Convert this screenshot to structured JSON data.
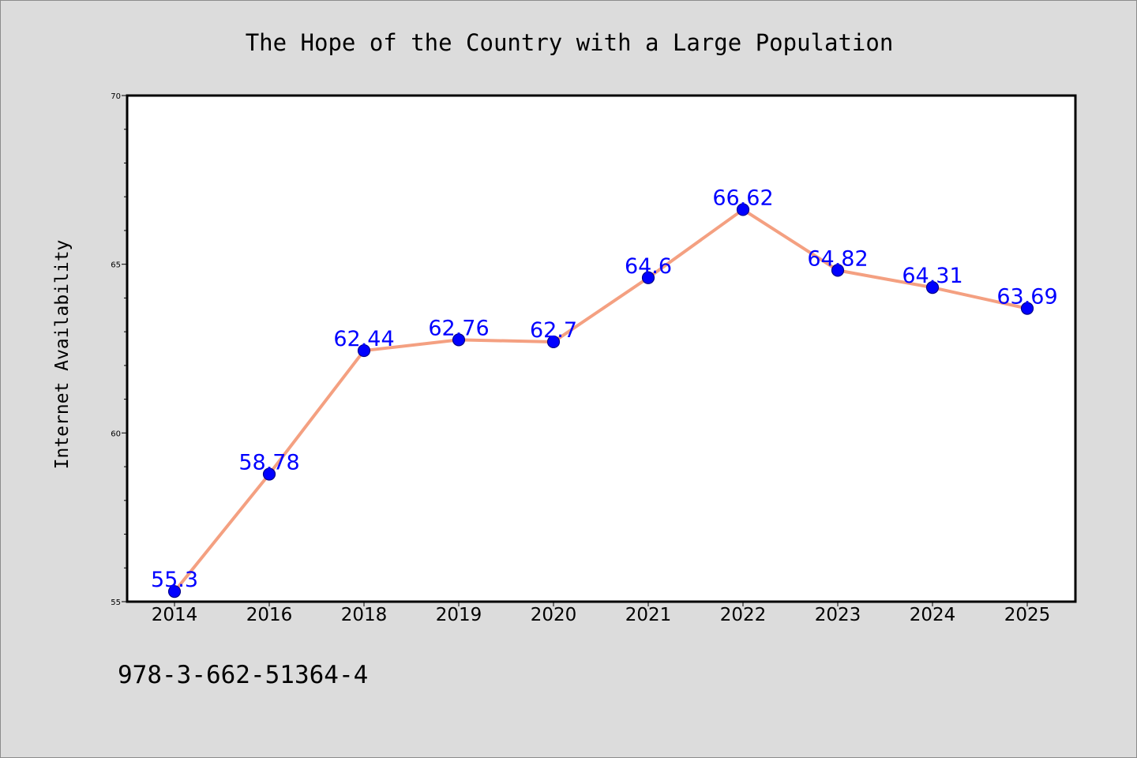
{
  "colors": {
    "figure_background": "#dcdcdc",
    "plot_background": "#ffffff",
    "line": "#f4a081",
    "marker_fill": "#0000ff",
    "marker_edge": "#00008b",
    "data_label": "#0000ff",
    "axis": "#000000",
    "text": "#000000"
  },
  "footer": {
    "isbn": "978-3-662-51364-4"
  },
  "chart_data": {
    "type": "line",
    "title": "The Hope of the Country with a Large Population",
    "xlabel": "",
    "ylabel": "Internet Availability",
    "categories": [
      "2014",
      "2016",
      "2018",
      "2019",
      "2020",
      "2021",
      "2022",
      "2023",
      "2024",
      "2025"
    ],
    "series": [
      {
        "values": [
          55.3,
          58.78,
          62.44,
          62.76,
          62.7,
          64.6,
          66.62,
          64.82,
          64.31,
          63.69
        ],
        "labels": [
          "55.3",
          "58.78",
          "62.44",
          "62.76",
          "62.7",
          "64.6",
          "66.62",
          "64.82",
          "64.31",
          "63.69"
        ]
      }
    ],
    "ylim": [
      55,
      70
    ],
    "y_major_ticks": [
      55,
      60,
      65,
      70
    ],
    "y_major_tick_labels": [
      "55",
      "60",
      "65",
      "70"
    ],
    "y_minor_step": 1,
    "grid": false,
    "legend": "none",
    "marker": "circle"
  }
}
